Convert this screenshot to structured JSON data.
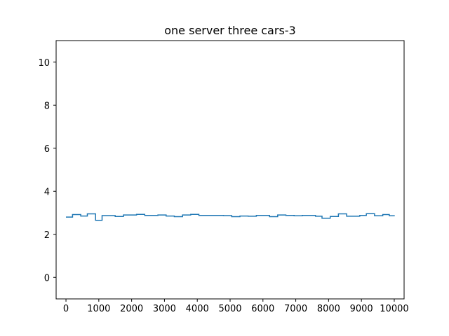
{
  "chart_data": {
    "type": "line",
    "title": "one server three cars-3",
    "xlabel": "",
    "ylabel": "",
    "xlim": [
      -300,
      10300
    ],
    "ylim": [
      -1,
      11
    ],
    "xticks": [
      0,
      1000,
      2000,
      3000,
      4000,
      5000,
      6000,
      7000,
      8000,
      9000,
      10000
    ],
    "yticks": [
      0,
      2,
      4,
      6,
      8,
      10
    ],
    "grid": false,
    "series": [
      {
        "color": "#1f77b4",
        "step": "post",
        "x": [
          0,
          200,
          450,
          650,
          900,
          1100,
          1500,
          1750,
          2150,
          2400,
          2800,
          3050,
          3300,
          3550,
          3800,
          4050,
          4800,
          5050,
          5300,
          5550,
          5800,
          6200,
          6450,
          6700,
          6950,
          7200,
          7600,
          7800,
          8050,
          8300,
          8550,
          8950,
          9150,
          9400,
          9650,
          9850,
          10000
        ],
        "y": [
          2.8,
          2.92,
          2.85,
          2.95,
          2.65,
          2.87,
          2.83,
          2.9,
          2.93,
          2.88,
          2.9,
          2.85,
          2.82,
          2.9,
          2.93,
          2.88,
          2.87,
          2.82,
          2.85,
          2.84,
          2.88,
          2.82,
          2.9,
          2.88,
          2.86,
          2.88,
          2.84,
          2.75,
          2.83,
          2.95,
          2.84,
          2.88,
          2.96,
          2.86,
          2.92,
          2.86,
          2.84
        ]
      }
    ]
  }
}
